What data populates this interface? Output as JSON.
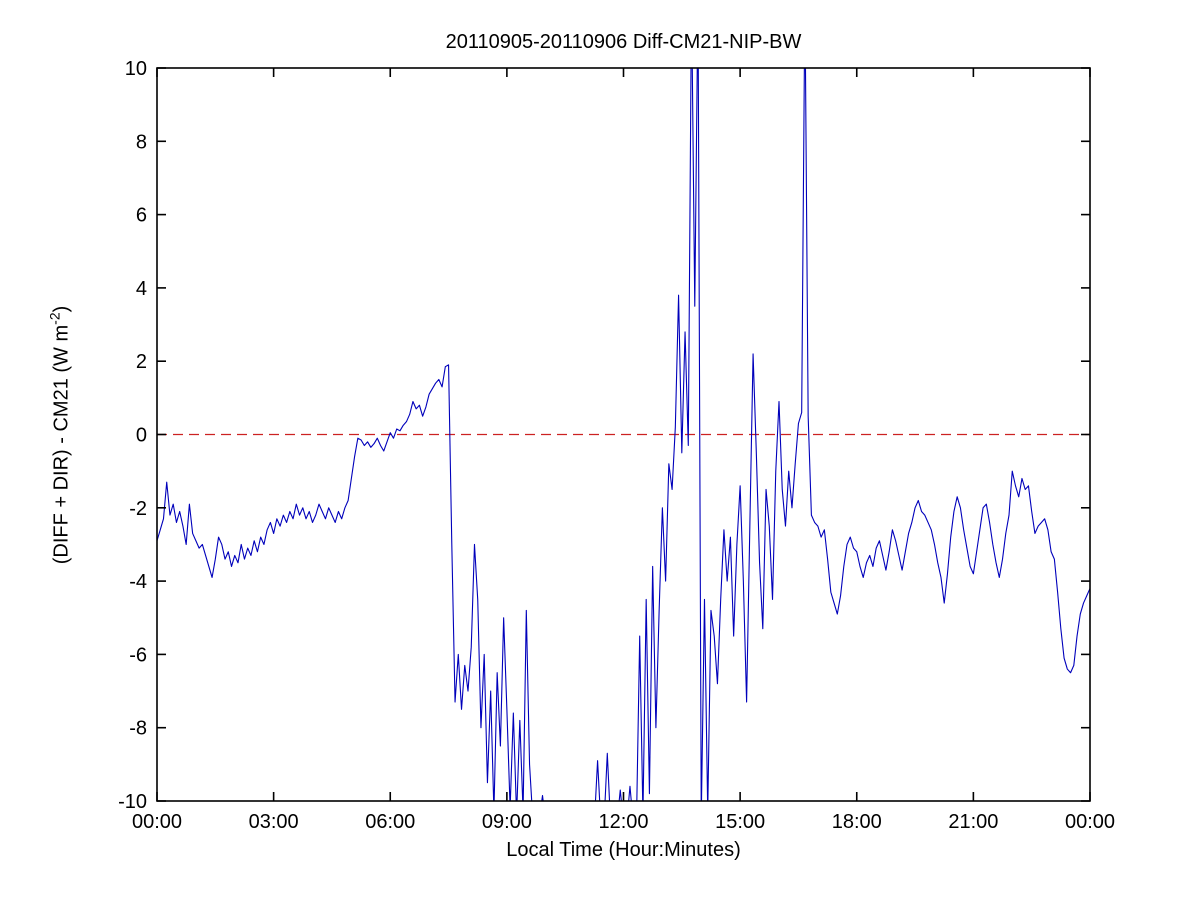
{
  "chart_data": {
    "type": "line",
    "title": "20110905-20110906 Diff-CM21-NIP-BW",
    "xlabel": "Local Time (Hour:Minutes)",
    "ylabel_main": "(DIFF + DIR) - CM21 (W m",
    "ylabel_sup": "-2",
    "ylabel_close": ")",
    "xlim": [
      0,
      24
    ],
    "ylim": [
      -10,
      10
    ],
    "xtick_hours": [
      0,
      3,
      6,
      9,
      12,
      15,
      18,
      21,
      24
    ],
    "xtick_labels": [
      "00:00",
      "03:00",
      "06:00",
      "09:00",
      "12:00",
      "15:00",
      "18:00",
      "21:00",
      "00:00"
    ],
    "ytick_values": [
      -10,
      -8,
      -6,
      -4,
      -2,
      0,
      2,
      4,
      6,
      8,
      10
    ],
    "ytick_labels": [
      "-10",
      "-8",
      "-6",
      "-4",
      "-2",
      "0",
      "2",
      "4",
      "6",
      "8",
      "10"
    ],
    "grid": false,
    "legend": "none",
    "zero_line": {
      "y": 0,
      "style": "dashed",
      "color": "#cc2222"
    },
    "axis_color": "#000000",
    "background_color": "#ffffff",
    "series": [
      {
        "name": "(DIFF + DIR) - CM21",
        "color": "#0000bb",
        "interval_minutes": 5,
        "start_hour": 0,
        "note_off_scale": "values beyond +/-10 are clipped at the axis box as in the original",
        "values": [
          -2.9,
          -2.6,
          -2.3,
          -1.3,
          -2.2,
          -1.9,
          -2.4,
          -2.1,
          -2.5,
          -3.0,
          -1.9,
          -2.7,
          -2.9,
          -3.1,
          -3.0,
          -3.3,
          -3.6,
          -3.9,
          -3.4,
          -2.8,
          -3.0,
          -3.4,
          -3.2,
          -3.6,
          -3.3,
          -3.5,
          -3.0,
          -3.4,
          -3.1,
          -3.3,
          -2.9,
          -3.2,
          -2.8,
          -3.0,
          -2.6,
          -2.4,
          -2.7,
          -2.3,
          -2.5,
          -2.2,
          -2.4,
          -2.1,
          -2.3,
          -1.9,
          -2.2,
          -2.0,
          -2.3,
          -2.1,
          -2.4,
          -2.2,
          -1.9,
          -2.1,
          -2.3,
          -2.0,
          -2.2,
          -2.4,
          -2.1,
          -2.3,
          -2.0,
          -1.8,
          -1.2,
          -0.6,
          -0.1,
          -0.15,
          -0.3,
          -0.2,
          -0.35,
          -0.25,
          -0.1,
          -0.3,
          -0.45,
          -0.2,
          0.05,
          -0.1,
          0.15,
          0.1,
          0.25,
          0.35,
          0.55,
          0.9,
          0.7,
          0.8,
          0.5,
          0.75,
          1.1,
          1.25,
          1.4,
          1.5,
          1.3,
          1.85,
          1.9,
          -3.0,
          -7.3,
          -6.0,
          -7.5,
          -6.3,
          -7.0,
          -5.8,
          -3.0,
          -4.5,
          -8.0,
          -6.0,
          -9.5,
          -7.0,
          -10.3,
          -6.5,
          -8.5,
          -5.0,
          -7.5,
          -10.2,
          -7.6,
          -10.4,
          -7.8,
          -10.3,
          -4.8,
          -9.0,
          -10.5,
          -10.5,
          -10.5,
          -9.85,
          -10.6,
          -10.6,
          -10.6,
          -10.6,
          -10.6,
          -10.6,
          -10.6,
          -10.6,
          -10.6,
          -10.6,
          -10.6,
          -10.6,
          -10.6,
          -10.6,
          -10.6,
          -10.6,
          -8.9,
          -10.6,
          -10.6,
          -8.7,
          -10.6,
          -10.6,
          -10.6,
          -9.7,
          -10.6,
          -10.6,
          -9.6,
          -10.6,
          -10.6,
          -5.5,
          -10.4,
          -4.5,
          -9.8,
          -3.6,
          -8.0,
          -4.8,
          -2.0,
          -4.0,
          -0.8,
          -1.5,
          0.2,
          3.8,
          -0.5,
          2.8,
          -0.3,
          12,
          3.5,
          12,
          -10.5,
          -4.5,
          -10.3,
          -4.8,
          -5.5,
          -6.8,
          -4.5,
          -2.6,
          -4.0,
          -2.8,
          -5.5,
          -3.0,
          -1.4,
          -4.0,
          -7.3,
          -2.5,
          2.2,
          -0.5,
          -3.5,
          -5.3,
          -1.5,
          -2.5,
          -4.5,
          -1.0,
          0.9,
          -1.5,
          -2.5,
          -1.0,
          -2.0,
          -0.8,
          0.3,
          0.6,
          12,
          0.5,
          -2.2,
          -2.4,
          -2.5,
          -2.8,
          -2.6,
          -3.4,
          -4.3,
          -4.6,
          -4.9,
          -4.4,
          -3.6,
          -3.0,
          -2.8,
          -3.1,
          -3.2,
          -3.6,
          -3.9,
          -3.5,
          -3.3,
          -3.6,
          -3.1,
          -2.9,
          -3.3,
          -3.7,
          -3.2,
          -2.6,
          -2.9,
          -3.3,
          -3.7,
          -3.2,
          -2.7,
          -2.4,
          -2.0,
          -1.8,
          -2.1,
          -2.2,
          -2.4,
          -2.6,
          -3.0,
          -3.5,
          -3.9,
          -4.6,
          -3.8,
          -2.8,
          -2.1,
          -1.7,
          -2.0,
          -2.6,
          -3.1,
          -3.6,
          -3.8,
          -3.2,
          -2.6,
          -2.0,
          -1.9,
          -2.4,
          -3.0,
          -3.5,
          -3.9,
          -3.4,
          -2.7,
          -2.2,
          -1.0,
          -1.4,
          -1.7,
          -1.2,
          -1.5,
          -1.4,
          -2.1,
          -2.7,
          -2.5,
          -2.4,
          -2.3,
          -2.6,
          -3.2,
          -3.4,
          -4.3,
          -5.3,
          -6.1,
          -6.4,
          -6.5,
          -6.3,
          -5.5,
          -4.9,
          -4.6,
          -4.4,
          -4.2
        ]
      }
    ]
  }
}
